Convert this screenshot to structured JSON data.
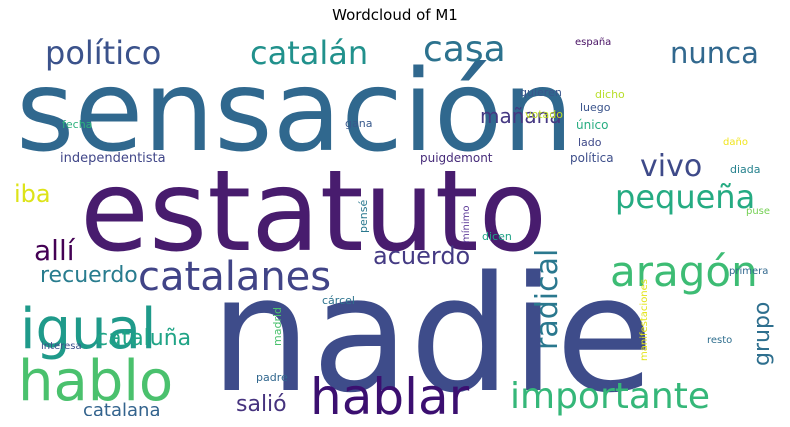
{
  "title": "Wordcloud of M1",
  "words": [
    {
      "text": "sensación",
      "color": "#30688e"
    },
    {
      "text": "estatuto",
      "color": "#481c6e"
    },
    {
      "text": "nadie",
      "color": "#3e4c8a"
    },
    {
      "text": "igual",
      "color": "#1f9a8a"
    },
    {
      "text": "hablo",
      "color": "#4ac16d"
    },
    {
      "text": "hablar",
      "color": "#3b0f70"
    },
    {
      "text": "catalanes",
      "color": "#414487"
    },
    {
      "text": "aragón",
      "color": "#3dbc74"
    },
    {
      "text": "importante",
      "color": "#35b779"
    },
    {
      "text": "político",
      "color": "#3b528b"
    },
    {
      "text": "catalán",
      "color": "#21918c"
    },
    {
      "text": "casa",
      "color": "#2c728e"
    },
    {
      "text": "nunca",
      "color": "#31688e"
    },
    {
      "text": "pequeña",
      "color": "#25ab82"
    },
    {
      "text": "vivo",
      "color": "#3e4a89"
    },
    {
      "text": "radical",
      "color": "#2a788e"
    },
    {
      "text": "allí",
      "color": "#440154"
    },
    {
      "text": "acuerdo",
      "color": "#443a83"
    },
    {
      "text": "recuerdo",
      "color": "#287c8e"
    },
    {
      "text": "cataluña",
      "color": "#20a486"
    },
    {
      "text": "grupo",
      "color": "#2e6f8e"
    },
    {
      "text": "salió",
      "color": "#46337e"
    },
    {
      "text": "catalana",
      "color": "#33638d"
    },
    {
      "text": "mañana",
      "color": "#453882"
    },
    {
      "text": "iba",
      "color": "#dde318"
    },
    {
      "text": "independentista",
      "color": "#404688"
    },
    {
      "text": "puigdemont",
      "color": "#472c7a"
    },
    {
      "text": "política",
      "color": "#3d4e8a"
    },
    {
      "text": "diada",
      "color": "#26828e"
    },
    {
      "text": "único",
      "color": "#27ad81"
    },
    {
      "text": "lado",
      "color": "#3e4989"
    },
    {
      "text": "quieren",
      "color": "#39558c"
    },
    {
      "text": "luego",
      "color": "#3a538b"
    },
    {
      "text": "dicho",
      "color": "#b8de29"
    },
    {
      "text": "votado",
      "color": "#c0df25"
    },
    {
      "text": "gana",
      "color": "#38598c"
    },
    {
      "text": "fecha",
      "color": "#2db27d"
    },
    {
      "text": "españa",
      "color": "#471063"
    },
    {
      "text": "daño",
      "color": "#f1e51d"
    },
    {
      "text": "puse",
      "color": "#75d054"
    },
    {
      "text": "pensé",
      "color": "#2a788e"
    },
    {
      "text": "mínimo",
      "color": "#5e3c99"
    },
    {
      "text": "dicen",
      "color": "#20a386"
    },
    {
      "text": "primera",
      "color": "#31688e"
    },
    {
      "text": "manifestaciones",
      "color": "#e2e418"
    },
    {
      "text": "madrid",
      "color": "#4ac16d"
    },
    {
      "text": "cárcel",
      "color": "#2c738e"
    },
    {
      "text": "interesa",
      "color": "#3c4f8a"
    },
    {
      "text": "resto",
      "color": "#2e6e8e"
    },
    {
      "text": "padre",
      "color": "#31678e"
    }
  ]
}
